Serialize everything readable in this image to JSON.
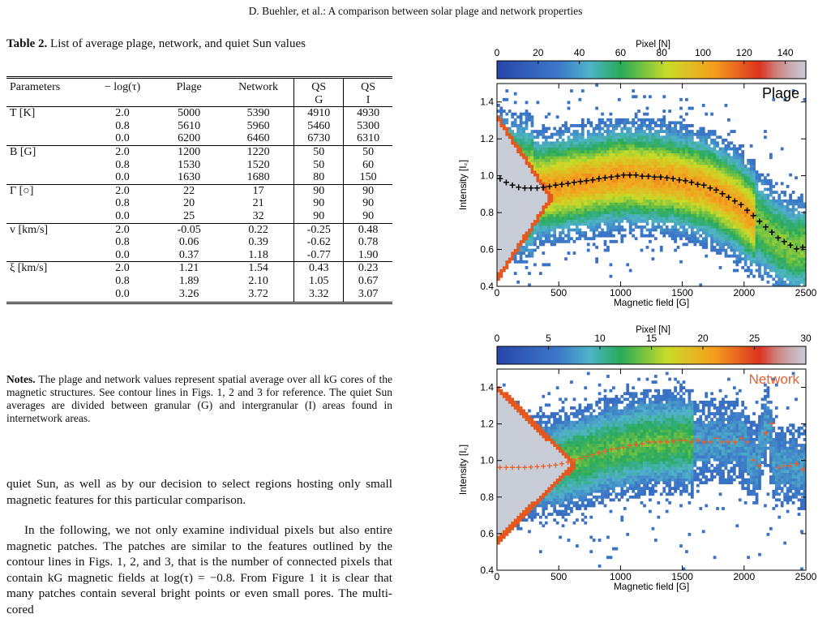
{
  "header": "D. Buehler, et al.: A comparison between solar plage and network properties",
  "table": {
    "caption_bold": "Table 2.",
    "caption_rest": " List of average plage, network, and quiet Sun values",
    "columns": [
      "Parameters",
      "− log(τ)",
      "Plage",
      "Network",
      "QS",
      "QS"
    ],
    "columns_sub": [
      "",
      "",
      "",
      "",
      "G",
      "I"
    ],
    "groups": [
      {
        "param": "T [K]",
        "rows": [
          [
            "2.0",
            "5000",
            "5390",
            "4910",
            "4930"
          ],
          [
            "0.8",
            "5610",
            "5960",
            "5460",
            "5300"
          ],
          [
            "0.0",
            "6200",
            "6460",
            "6730",
            "6310"
          ]
        ]
      },
      {
        "param": "B [G]",
        "rows": [
          [
            "2.0",
            "1200",
            "1220",
            "50",
            "50"
          ],
          [
            "0.8",
            "1530",
            "1520",
            "50",
            "60"
          ],
          [
            "0.0",
            "1630",
            "1680",
            "80",
            "150"
          ]
        ]
      },
      {
        "param": "Γ [○]",
        "rows": [
          [
            "2.0",
            "22",
            "17",
            "90",
            "90"
          ],
          [
            "0.8",
            "20",
            "21",
            "90",
            "90"
          ],
          [
            "0.0",
            "25",
            "32",
            "90",
            "90"
          ]
        ]
      },
      {
        "param": "v [km/s]",
        "rows": [
          [
            "2.0",
            "-0.05",
            "0.22",
            "-0.25",
            "0.48"
          ],
          [
            "0.8",
            "0.06",
            "0.39",
            "-0.62",
            "0.78"
          ],
          [
            "0.0",
            "0.37",
            "1.18",
            "-0.77",
            "1.90"
          ]
        ]
      },
      {
        "param": "ξ [km/s]",
        "rows": [
          [
            "2.0",
            "1.21",
            "1.54",
            "0.43",
            "0.23"
          ],
          [
            "0.8",
            "1.89",
            "2.10",
            "1.05",
            "0.67"
          ],
          [
            "0.0",
            "3.26",
            "3.72",
            "3.32",
            "3.07"
          ]
        ]
      }
    ]
  },
  "notes": {
    "bold": "Notes.",
    "text": " The plage and network values represent spatial average over all kG cores of the magnetic structures. See contour lines in Figs. 1, 2 and 3 for reference. The quiet Sun averages are divided between granular (G) and intergranular (I) areas found in internetwork areas."
  },
  "body": {
    "p1": "quiet Sun, as well as by our decision to select regions hosting only small magnetic features for this particular comparison.",
    "p2": "In the following, we not only examine individual pixels but also entire magnetic patches. The patches are similar to the features outlined by the contour lines in Figs. 1, 2, and 3, that is the number of connected pixels that contain kG magnetic fields at log(τ) = −0.8. From Figure 1 it is clear that many patches contain several bright points or even small pores. The multi-cored"
  },
  "chart_data": [
    {
      "type": "heatmap",
      "label": "Plage",
      "xlabel": "Magnetic field [G]",
      "ylabel": "Intensity [I꜀]",
      "xlim": [
        0,
        2500
      ],
      "ylim": [
        0.4,
        1.5
      ],
      "xticks": [
        "0",
        "500",
        "1000",
        "1500",
        "2000",
        "2500"
      ],
      "yticks": [
        "0.4",
        "0.6",
        "0.8",
        "1.0",
        "1.2",
        "1.4"
      ],
      "colorbar_label": "Pixel [N]",
      "colorbar_ticks": [
        "0",
        "20",
        "40",
        "60",
        "80",
        "100",
        "120",
        "140"
      ],
      "colorbar_range": [
        0,
        150
      ],
      "mean_marker_color": "#000000",
      "mean_curve": {
        "x": [
          0,
          50,
          100,
          150,
          200,
          250,
          300,
          350,
          400,
          450,
          500,
          550,
          600,
          650,
          700,
          750,
          800,
          850,
          900,
          950,
          1000,
          1050,
          1100,
          1150,
          1200,
          1250,
          1300,
          1350,
          1400,
          1450,
          1500,
          1550,
          1600,
          1650,
          1700,
          1750,
          1800,
          1850,
          1900,
          1950,
          2000,
          2050,
          2100,
          2150,
          2200,
          2250,
          2300,
          2350,
          2400,
          2450
        ],
        "y": [
          0.98,
          0.96,
          0.945,
          0.935,
          0.93,
          0.93,
          0.93,
          0.935,
          0.94,
          0.945,
          0.95,
          0.955,
          0.96,
          0.965,
          0.97,
          0.975,
          0.98,
          0.985,
          0.99,
          0.995,
          1.0,
          1.0,
          1.0,
          0.995,
          0.995,
          0.99,
          0.99,
          0.985,
          0.98,
          0.975,
          0.97,
          0.96,
          0.95,
          0.945,
          0.93,
          0.92,
          0.9,
          0.88,
          0.86,
          0.84,
          0.81,
          0.78,
          0.75,
          0.72,
          0.69,
          0.66,
          0.64,
          0.62,
          0.6,
          0.61
        ]
      }
    },
    {
      "type": "heatmap",
      "label": "Network",
      "xlabel": "Magnetic field [G]",
      "ylabel": "Intensity [I꜀]",
      "xlim": [
        0,
        2500
      ],
      "ylim": [
        0.4,
        1.5
      ],
      "xticks": [
        "0",
        "500",
        "1000",
        "1500",
        "2000",
        "2500"
      ],
      "yticks": [
        "0.4",
        "0.6",
        "0.8",
        "1.0",
        "1.2",
        "1.4"
      ],
      "colorbar_label": "Pixel [N]",
      "colorbar_ticks": [
        "0",
        "5",
        "10",
        "15",
        "20",
        "25",
        "30"
      ],
      "colorbar_range": [
        0,
        30
      ],
      "mean_marker_color": "#e8602c",
      "mean_curve": {
        "x": [
          0,
          50,
          100,
          150,
          200,
          250,
          300,
          350,
          400,
          450,
          500,
          550,
          600,
          650,
          700,
          750,
          800,
          850,
          900,
          950,
          1000,
          1050,
          1100,
          1150,
          1200,
          1250,
          1300,
          1350,
          1400,
          1450,
          1500,
          1550,
          1600,
          1650,
          1700,
          1750,
          1800,
          1850,
          1900,
          1950,
          2000,
          2050,
          2100,
          2150,
          2200,
          2250,
          2300,
          2350,
          2400,
          2450
        ],
        "y": [
          0.96,
          0.96,
          0.96,
          0.96,
          0.962,
          0.963,
          0.965,
          0.968,
          0.97,
          0.975,
          0.98,
          0.99,
          1.0,
          1.01,
          1.02,
          1.03,
          1.04,
          1.05,
          1.06,
          1.065,
          1.07,
          1.08,
          1.085,
          1.09,
          1.1,
          1.1,
          1.1,
          1.1,
          1.105,
          1.11,
          1.11,
          1.1,
          1.11,
          1.1,
          1.1,
          1.12,
          1.1,
          1.1,
          1.1,
          1.12,
          1.1,
          1.0,
          0.97,
          1.15,
          1.2,
          0.96,
          0.97,
          0.97,
          0.98,
          0.95
        ]
      }
    }
  ]
}
